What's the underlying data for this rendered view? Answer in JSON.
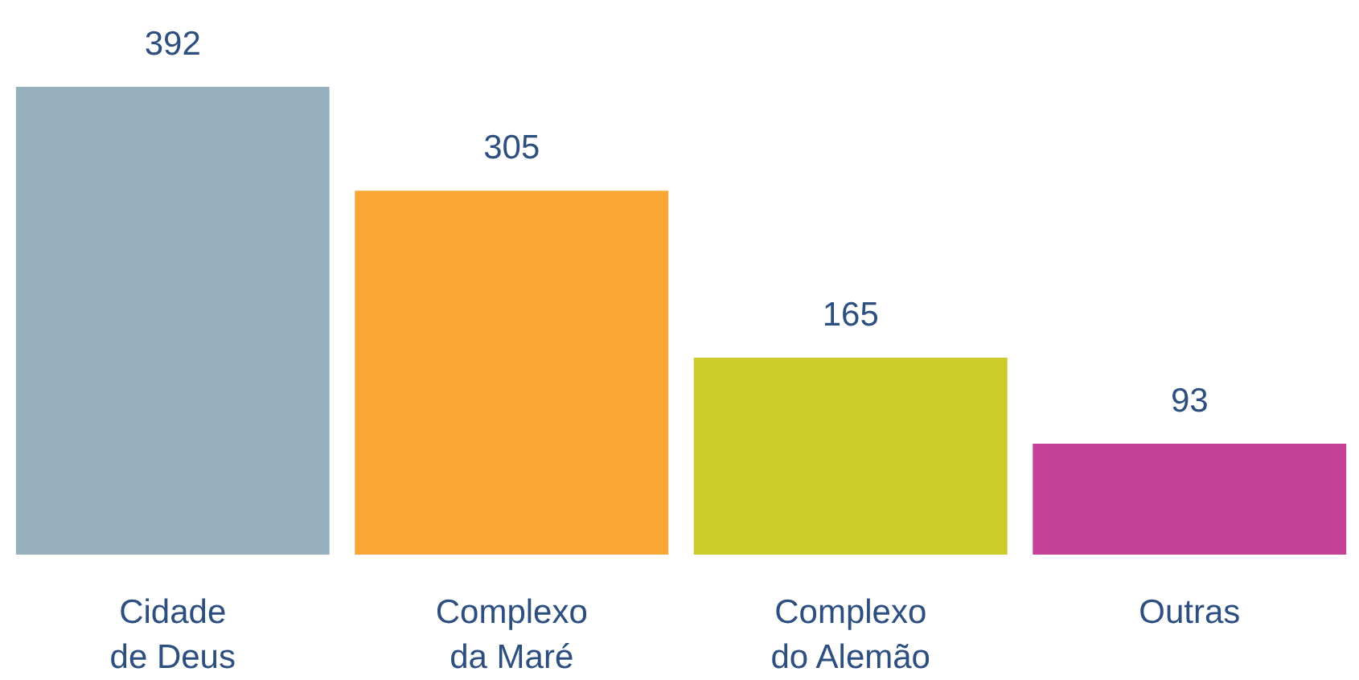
{
  "chart_data": {
    "type": "bar",
    "categories": [
      "Cidade\nde Deus",
      "Complexo\nda Maré",
      "Complexo\ndo Alemão",
      "Outras"
    ],
    "values": [
      392,
      305,
      165,
      93
    ],
    "colors": [
      "#96b0bd",
      "#f9a635",
      "#cdcb29",
      "#c44195"
    ],
    "data_labels": true
  }
}
